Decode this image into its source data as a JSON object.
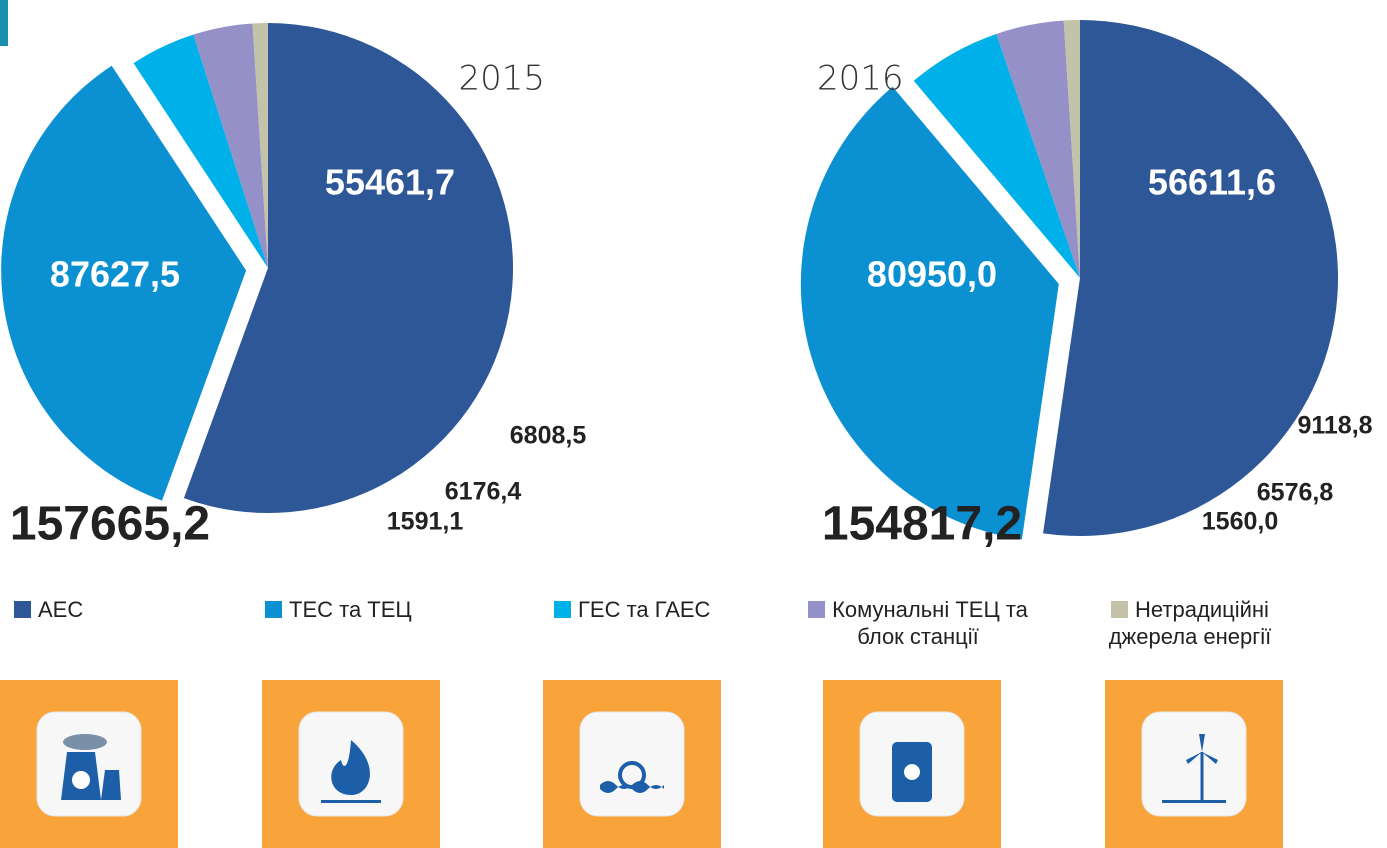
{
  "legend": {
    "categories": [
      "АЕС",
      "ТЕС та ТЕЦ",
      "ГЕС та ГАЕС",
      "Комунальні ТЕЦ та блок станції",
      "Нетрадиційні джерела енергії"
    ],
    "colors": [
      "#2d5797",
      "#0b91d2",
      "#00b0e8",
      "#9590c8",
      "#c3c3a9"
    ]
  },
  "chart_data": [
    {
      "type": "pie",
      "title": "2015",
      "total": "157665,2",
      "values": [
        87627.5,
        55461.7,
        6808.5,
        6176.4,
        1591.1
      ],
      "value_labels": [
        "87627,5",
        "55461,7",
        "6808,5",
        "6176,4",
        "1591,1"
      ]
    },
    {
      "type": "pie",
      "title": "2016",
      "total": "154817,2",
      "values": [
        80950.0,
        56611.6,
        9118.8,
        6576.8,
        1560.0
      ],
      "value_labels": [
        "80950,0",
        "56611,6",
        "9118,8",
        "6576,8",
        "1560,0"
      ]
    }
  ]
}
